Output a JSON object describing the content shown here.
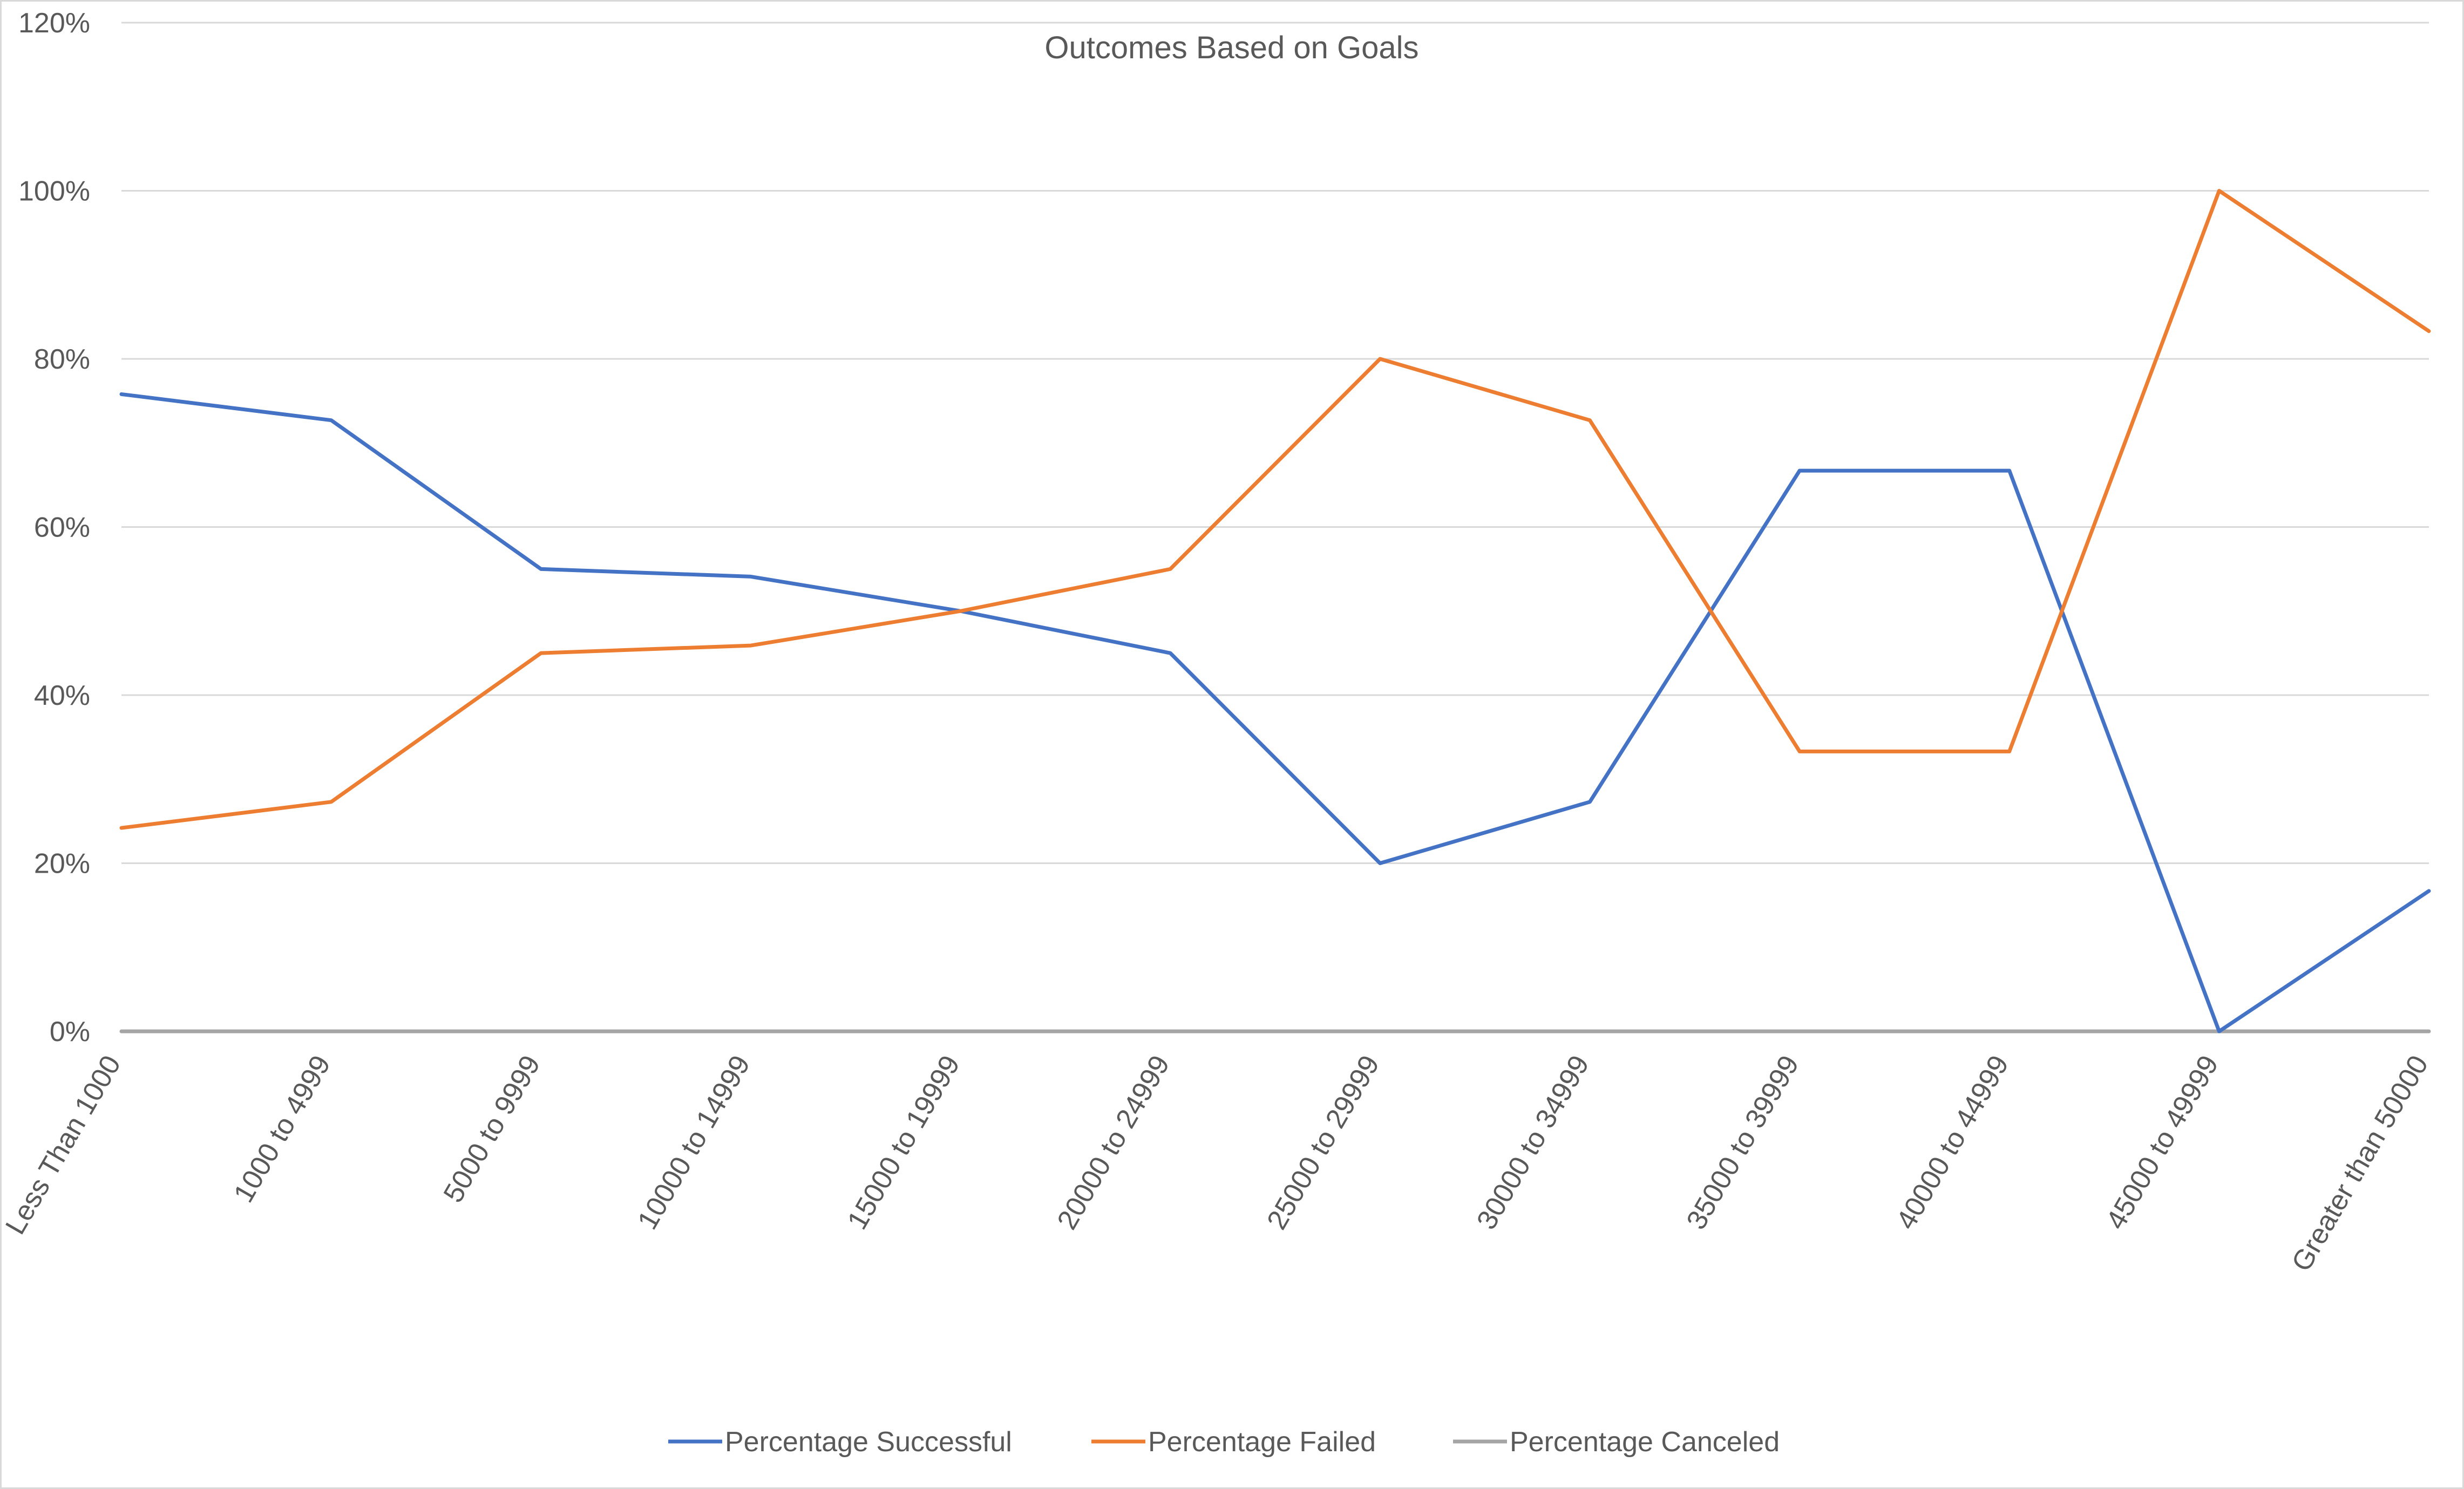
{
  "chart_data": {
    "type": "line",
    "title": "Outcomes Based on Goals",
    "xlabel": "",
    "ylabel": "",
    "ylim": [
      0,
      1.2
    ],
    "y_ticks": [
      0,
      0.2,
      0.4,
      0.6,
      0.8,
      1.0,
      1.2
    ],
    "y_tick_labels": [
      "0%",
      "20%",
      "40%",
      "60%",
      "80%",
      "100%",
      "120%"
    ],
    "grid": true,
    "legend_position": "bottom",
    "categories": [
      "Less Than 1000",
      "1000 to 4999",
      "5000 to 9999",
      "10000 to 14999",
      "15000 to 19999",
      "20000 to 24999",
      "25000 to 29999",
      "30000 to 34999",
      "35000 to 39999",
      "40000 to 44999",
      "45000 to 49999",
      "Greater than 50000"
    ],
    "series": [
      {
        "name": "Percentage Successful",
        "color": "#4472C4",
        "values": [
          0.758,
          0.727,
          0.55,
          0.541,
          0.5,
          0.45,
          0.2,
          0.273,
          0.667,
          0.667,
          0.0,
          0.167
        ]
      },
      {
        "name": "Percentage Failed",
        "color": "#ED7D31",
        "values": [
          0.242,
          0.273,
          0.45,
          0.459,
          0.5,
          0.55,
          0.8,
          0.727,
          0.333,
          0.333,
          1.0,
          0.833
        ]
      },
      {
        "name": "Percentage Canceled",
        "color": "#A5A5A5",
        "values": [
          0,
          0,
          0,
          0,
          0,
          0,
          0,
          0,
          0,
          0,
          0,
          0
        ]
      }
    ]
  }
}
